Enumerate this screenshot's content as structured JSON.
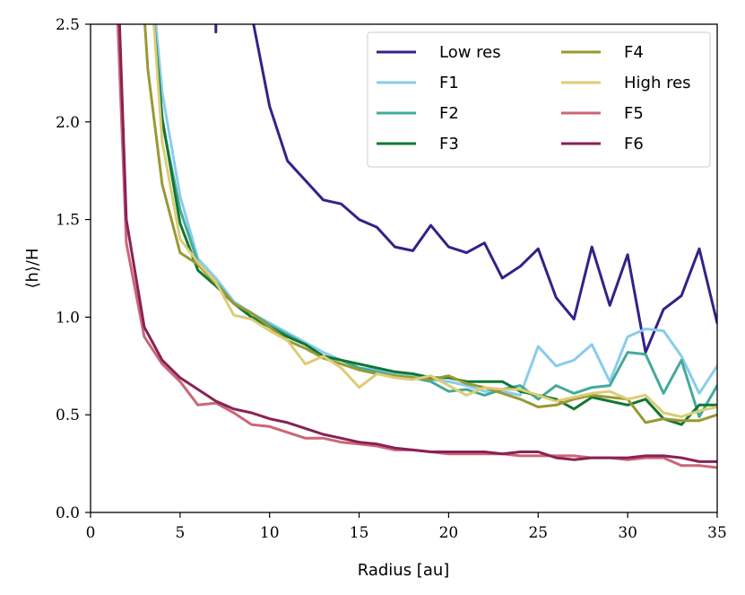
{
  "chart_data": {
    "type": "line",
    "xlabel": "Radius [au]",
    "ylabel": "⟨h⟩/H",
    "xlim": [
      0,
      35
    ],
    "ylim": [
      0,
      2.5
    ],
    "xticks": [
      "0",
      "5",
      "10",
      "15",
      "20",
      "25",
      "30",
      "35"
    ],
    "yticks": [
      "0.0",
      "0.5",
      "1.0",
      "1.5",
      "2.0",
      "2.5"
    ],
    "legend_position": "top-right",
    "legend_columns": 2,
    "series": [
      {
        "name": "Low res",
        "color": "#332288",
        "x": [
          7,
          7,
          9,
          10,
          11,
          12,
          13,
          14,
          15,
          16,
          17,
          18,
          19,
          20,
          21,
          22,
          23,
          24,
          25,
          26,
          27,
          28,
          29,
          30,
          31,
          32,
          33,
          34,
          35
        ],
        "y": [
          2.46,
          2.52,
          2.55,
          2.08,
          1.8,
          1.7,
          1.6,
          1.58,
          1.5,
          1.46,
          1.36,
          1.34,
          1.47,
          1.36,
          1.33,
          1.38,
          1.2,
          1.26,
          1.35,
          1.1,
          0.99,
          1.36,
          1.06,
          1.32,
          0.82,
          1.04,
          1.11,
          1.35,
          0.97
        ]
      },
      {
        "name": "F1",
        "color": "#88CCEE",
        "x": [
          3.6,
          4,
          5,
          6,
          7,
          8,
          9,
          10,
          11,
          12,
          13,
          14,
          15,
          16,
          17,
          18,
          19,
          20,
          21,
          22,
          23,
          24,
          25,
          26,
          27,
          28,
          29,
          30,
          31,
          32,
          33,
          34,
          35
        ],
        "y": [
          2.55,
          2.15,
          1.62,
          1.3,
          1.2,
          1.08,
          1.02,
          0.97,
          0.92,
          0.87,
          0.82,
          0.78,
          0.74,
          0.73,
          0.71,
          0.7,
          0.68,
          0.67,
          0.65,
          0.62,
          0.62,
          0.6,
          0.85,
          0.75,
          0.78,
          0.86,
          0.67,
          0.9,
          0.94,
          0.93,
          0.8,
          0.61,
          0.75
        ]
      },
      {
        "name": "F2",
        "color": "#44AA99",
        "x": [
          3.5,
          4,
          5,
          6,
          7,
          8,
          9,
          10,
          11,
          12,
          13,
          14,
          15,
          16,
          17,
          18,
          19,
          20,
          21,
          22,
          23,
          24,
          25,
          26,
          27,
          28,
          29,
          30,
          31,
          32,
          33,
          34,
          35
        ],
        "y": [
          2.55,
          2.0,
          1.55,
          1.28,
          1.18,
          1.07,
          1.02,
          0.96,
          0.91,
          0.86,
          0.8,
          0.78,
          0.74,
          0.72,
          0.7,
          0.69,
          0.67,
          0.62,
          0.63,
          0.6,
          0.63,
          0.65,
          0.58,
          0.65,
          0.61,
          0.64,
          0.65,
          0.82,
          0.81,
          0.61,
          0.78,
          0.49,
          0.65
        ]
      },
      {
        "name": "F3",
        "color": "#117733",
        "x": [
          3.5,
          4,
          5,
          6,
          7,
          8,
          9,
          10,
          11,
          12,
          13,
          14,
          15,
          16,
          17,
          18,
          19,
          20,
          21,
          22,
          23,
          24,
          25,
          26,
          27,
          28,
          29,
          30,
          31,
          32,
          33,
          34,
          35
        ],
        "y": [
          2.55,
          2.02,
          1.48,
          1.24,
          1.16,
          1.07,
          1.0,
          0.95,
          0.9,
          0.86,
          0.8,
          0.78,
          0.76,
          0.74,
          0.72,
          0.71,
          0.69,
          0.69,
          0.67,
          0.67,
          0.67,
          0.62,
          0.6,
          0.58,
          0.53,
          0.59,
          0.57,
          0.55,
          0.58,
          0.48,
          0.45,
          0.55,
          0.55
        ]
      },
      {
        "name": "F4",
        "color": "#999933",
        "x": [
          3,
          3.2,
          4,
          5,
          6,
          7,
          8,
          9,
          10,
          11,
          12,
          13,
          14,
          15,
          16,
          17,
          18,
          19,
          20,
          21,
          22,
          23,
          24,
          25,
          26,
          27,
          28,
          29,
          30,
          31,
          32,
          33,
          34,
          35
        ],
        "y": [
          2.55,
          2.27,
          1.68,
          1.33,
          1.27,
          1.17,
          1.07,
          1.02,
          0.95,
          0.88,
          0.84,
          0.79,
          0.76,
          0.73,
          0.71,
          0.7,
          0.69,
          0.68,
          0.7,
          0.66,
          0.64,
          0.61,
          0.58,
          0.54,
          0.55,
          0.58,
          0.6,
          0.59,
          0.58,
          0.46,
          0.48,
          0.47,
          0.47,
          0.5
        ]
      },
      {
        "name": "High res",
        "color": "#DDCC77",
        "x": [
          3.5,
          4,
          5,
          6,
          7,
          8,
          9,
          10,
          11,
          12,
          13,
          14,
          15,
          16,
          17,
          18,
          19,
          20,
          21,
          22,
          23,
          24,
          25,
          26,
          27,
          28,
          29,
          30,
          31,
          32,
          33,
          34,
          35
        ],
        "y": [
          2.55,
          1.9,
          1.4,
          1.28,
          1.18,
          1.01,
          0.99,
          0.93,
          0.88,
          0.76,
          0.8,
          0.74,
          0.64,
          0.71,
          0.69,
          0.68,
          0.7,
          0.65,
          0.6,
          0.64,
          0.63,
          0.63,
          0.6,
          0.57,
          0.59,
          0.61,
          0.62,
          0.58,
          0.6,
          0.51,
          0.49,
          0.52,
          0.54
        ]
      },
      {
        "name": "F5",
        "color": "#CC6677",
        "x": [
          1.5,
          2,
          3,
          4,
          5,
          6,
          7,
          8,
          9,
          10,
          11,
          12,
          13,
          14,
          15,
          16,
          17,
          18,
          19,
          20,
          21,
          22,
          23,
          24,
          25,
          26,
          27,
          28,
          29,
          30,
          31,
          32,
          33,
          34,
          35
        ],
        "y": [
          2.55,
          1.38,
          0.9,
          0.76,
          0.67,
          0.55,
          0.56,
          0.51,
          0.45,
          0.44,
          0.41,
          0.38,
          0.38,
          0.36,
          0.35,
          0.34,
          0.32,
          0.32,
          0.31,
          0.3,
          0.3,
          0.3,
          0.3,
          0.29,
          0.29,
          0.29,
          0.29,
          0.28,
          0.28,
          0.27,
          0.28,
          0.28,
          0.24,
          0.24,
          0.23
        ]
      },
      {
        "name": "F6",
        "color": "#882255",
        "x": [
          1.6,
          2,
          3,
          4,
          5,
          6,
          7,
          8,
          9,
          10,
          11,
          12,
          13,
          14,
          15,
          16,
          17,
          18,
          19,
          20,
          21,
          22,
          23,
          24,
          25,
          26,
          27,
          28,
          29,
          30,
          31,
          32,
          33,
          34,
          35
        ],
        "y": [
          2.55,
          1.5,
          0.95,
          0.78,
          0.69,
          0.63,
          0.57,
          0.53,
          0.51,
          0.48,
          0.46,
          0.43,
          0.4,
          0.38,
          0.36,
          0.35,
          0.33,
          0.32,
          0.31,
          0.31,
          0.31,
          0.31,
          0.3,
          0.31,
          0.31,
          0.28,
          0.27,
          0.28,
          0.28,
          0.28,
          0.29,
          0.29,
          0.28,
          0.26,
          0.26
        ]
      }
    ]
  }
}
